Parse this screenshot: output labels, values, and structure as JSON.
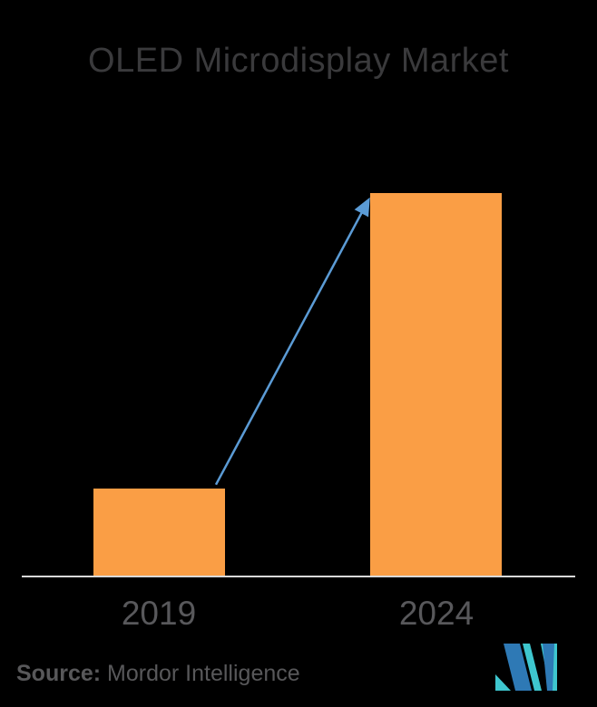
{
  "chart_data": {
    "type": "bar",
    "title": "OLED Microdisplay Market",
    "categories": [
      "2019",
      "2024"
    ],
    "values": [
      23,
      100
    ],
    "value_scale": "relative bar heights; no numeric axis or data labels shown",
    "xlabel": "",
    "ylabel": "",
    "ylim": [
      0,
      100
    ],
    "grid": false,
    "legend": false,
    "annotations": [
      {
        "type": "arrow",
        "from_category": "2019",
        "to_category": "2024",
        "meaning": "growth arrow from top of 2019 bar to top of 2024 bar"
      }
    ]
  },
  "footer": {
    "source_label": "Source:",
    "source_value": "Mordor Intelligence"
  },
  "colors": {
    "background": "#000000",
    "bar": "#FA9E45",
    "arrow": "#5B9BD5",
    "axis": "#D9D9D9",
    "title": "#3A3A3C",
    "tick": "#58585B",
    "source": "#58585A",
    "logo_blue": "#2E79B5",
    "logo_teal": "#3EC6CE"
  }
}
